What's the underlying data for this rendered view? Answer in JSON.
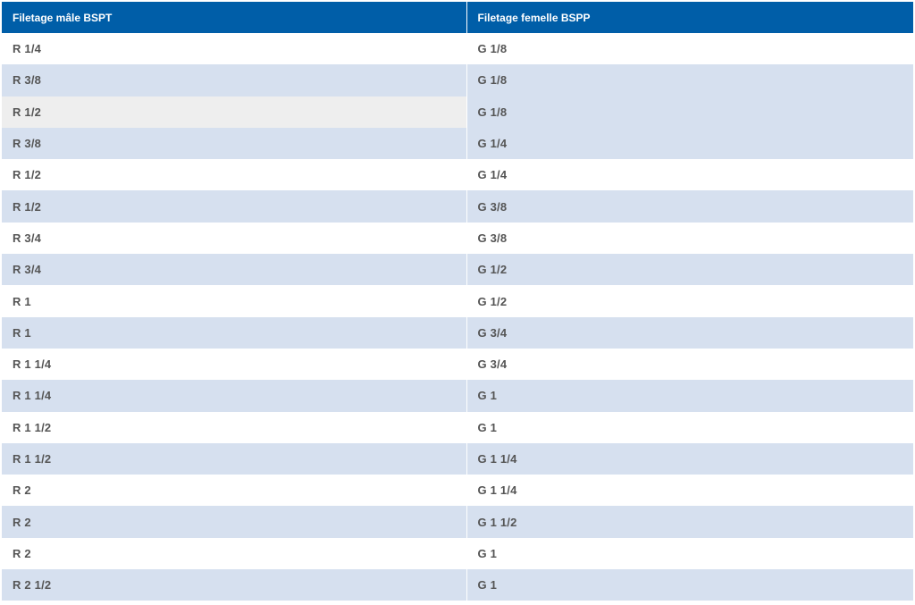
{
  "table": {
    "headers": [
      "Filetage mâle BSPT",
      "Filetage femelle BSPP"
    ],
    "rows": [
      [
        "R 1/4",
        "G 1/8"
      ],
      [
        "R 3/8",
        "G 1/8"
      ],
      [
        "R 1/2",
        "G 1/8"
      ],
      [
        "R 3/8",
        "G 1/4"
      ],
      [
        "R 1/2",
        "G 1/4"
      ],
      [
        "R 1/2",
        "G 3/8"
      ],
      [
        "R 3/4",
        "G 3/8"
      ],
      [
        "R 3/4",
        "G 1/2"
      ],
      [
        "R 1",
        "G 1/2"
      ],
      [
        "R 1",
        "G 3/4"
      ],
      [
        "R 1 1/4",
        "G 3/4"
      ],
      [
        "R 1 1/4",
        "G 1"
      ],
      [
        "R 1 1/2",
        "G 1"
      ],
      [
        "R 1 1/2",
        "G 1 1/4"
      ],
      [
        "R 2",
        "G 1 1/4"
      ],
      [
        "R 2",
        "G 1 1/2"
      ],
      [
        "R 2",
        "G 1"
      ],
      [
        "R 2 1/2",
        "G 1"
      ]
    ]
  },
  "colors": {
    "header_bg": "#005ea8",
    "row_alt_bg": "#d6e0ef",
    "row_hover_bg": "#eeeeee",
    "text": "#555555"
  }
}
